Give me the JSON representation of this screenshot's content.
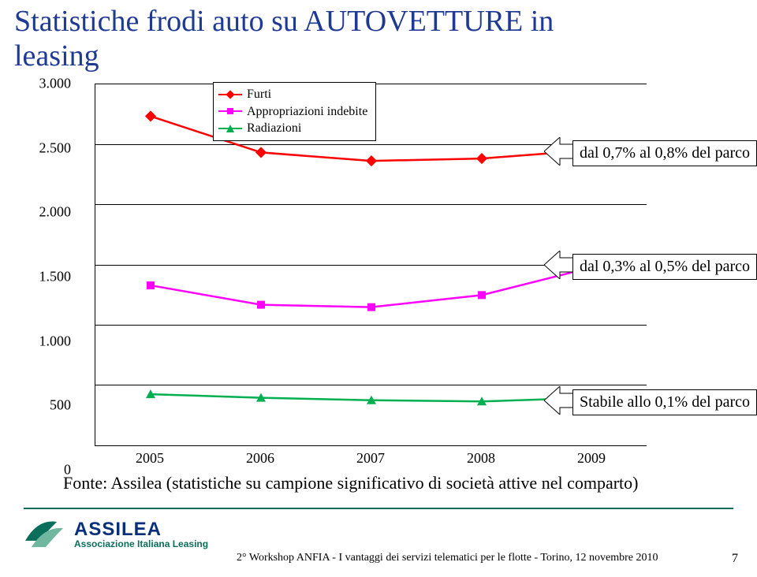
{
  "title_line1": "Statistiche frodi auto su AUTOVETTURE in",
  "title_line2": "leasing",
  "chart": {
    "type": "line",
    "categories": [
      "2005",
      "2006",
      "2007",
      "2008",
      "2009"
    ],
    "y_ticks": [
      "0",
      "500",
      "1.000",
      "1.500",
      "2.000",
      "2.500",
      "3.000"
    ],
    "ylim": [
      0,
      3000
    ],
    "plot_bg": "#ffffff",
    "grid_color": "#000000",
    "series": [
      {
        "name": "Furti",
        "color": "#ff0000",
        "marker": "diamond",
        "values": [
          2730,
          2430,
          2360,
          2380,
          2450
        ]
      },
      {
        "name": "Appropriazioni indebite",
        "color": "#ff00ff",
        "marker": "square",
        "values": [
          1330,
          1170,
          1150,
          1250,
          1480
        ]
      },
      {
        "name": "Radiazioni",
        "color": "#00b050",
        "marker": "triangle",
        "values": [
          430,
          400,
          380,
          370,
          400
        ]
      }
    ]
  },
  "legend": {
    "items": [
      "Furti",
      "Appropriazioni indebite",
      "Radiazioni"
    ]
  },
  "callouts": [
    {
      "text": "dal 0,7% al 0,8% del parco"
    },
    {
      "text": "dal 0,3% al 0,5% del parco"
    },
    {
      "text": "Stabile allo 0,1% del parco"
    }
  ],
  "caption": "Fonte: Assilea (statistiche su campione significativo di società attive nel comparto)",
  "logo": {
    "name": "ASSILEA",
    "sub": "Associazione Italiana Leasing",
    "mark_color": "#0a6e5a",
    "text_color": "#0a2f7a"
  },
  "footer_text": "2° Workshop ANFIA - I vantaggi dei servizi telematici per le flotte - Torino, 12 novembre 2010",
  "page_number": "7"
}
